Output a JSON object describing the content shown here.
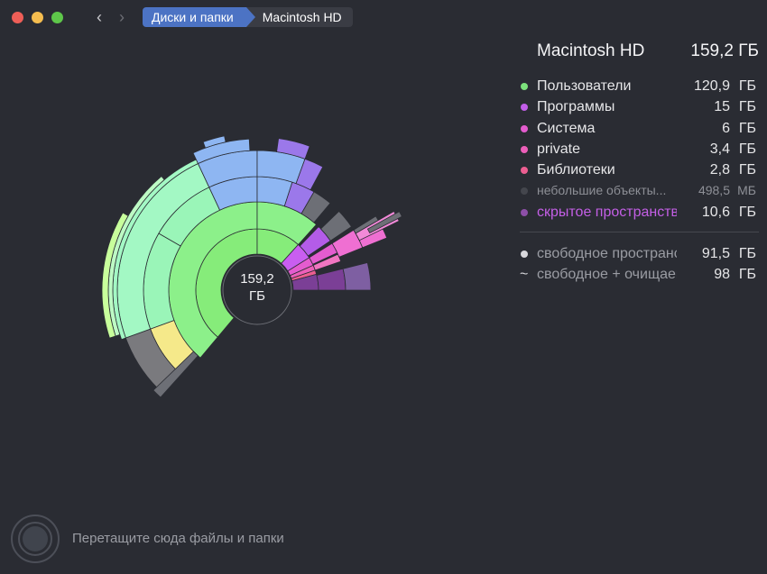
{
  "window": {
    "title": "Macintosh HD"
  },
  "breadcrumb": [
    "Диски и папки",
    "Macintosh HD"
  ],
  "icons": {
    "back": "chevron-left-icon",
    "forward": "chevron-right-icon",
    "drop": "drop-target-icon"
  },
  "center": {
    "size": "159,2",
    "unit": "ГБ"
  },
  "info": {
    "title": "Macintosh HD",
    "total": "159,2 ГБ",
    "items": [
      {
        "name": "Пользователи",
        "value": "120,9",
        "unit": "ГБ",
        "color": "#7ce27c"
      },
      {
        "name": "Программы",
        "value": "15",
        "unit": "ГБ",
        "color": "#c25ee9"
      },
      {
        "name": "Система",
        "value": "6",
        "unit": "ГБ",
        "color": "#e45ccf"
      },
      {
        "name": "private",
        "value": "3,4",
        "unit": "ГБ",
        "color": "#ec5fb9"
      },
      {
        "name": "Библиотеки",
        "value": "2,8",
        "unit": "ГБ",
        "color": "#ec5e91"
      },
      {
        "name": "небольшие объекты...",
        "value": "498,5",
        "unit": "МБ",
        "color": "#44464d"
      },
      {
        "name": "скрытое пространство",
        "value": "10,6",
        "unit": "ГБ",
        "color": "#8d4fa8"
      }
    ],
    "free": [
      {
        "name": "свободное пространство",
        "value": "91,5",
        "unit": "ГБ"
      },
      {
        "name": "свободное + очищаемое",
        "value": "98",
        "unit": "ГБ"
      }
    ]
  },
  "drop_hint": "Перетащите сюда файлы и папки",
  "colors": {
    "background": "#2a2c33",
    "accent": "#4c73c4"
  }
}
